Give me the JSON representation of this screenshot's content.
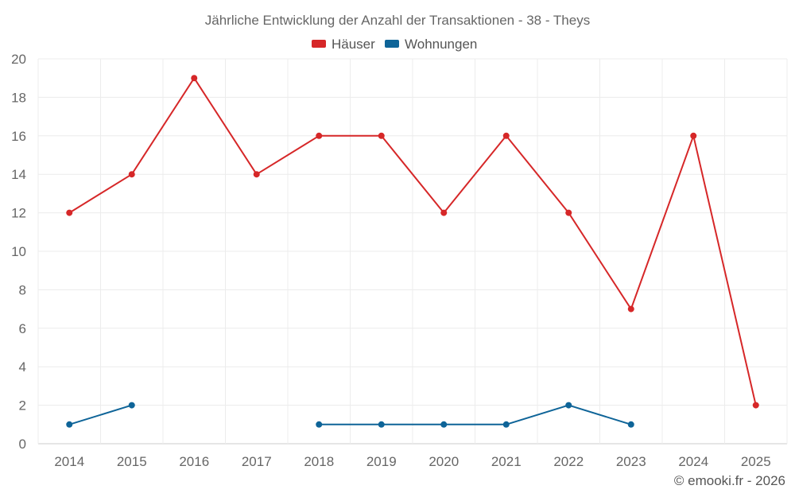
{
  "chart_data": {
    "type": "line",
    "title": "Jährliche Entwicklung der Anzahl der Transaktionen - 38 - Theys",
    "categories": [
      "2014",
      "2015",
      "2016",
      "2017",
      "2018",
      "2019",
      "2020",
      "2021",
      "2022",
      "2023",
      "2024",
      "2025"
    ],
    "ylim": [
      0,
      20
    ],
    "yticks": [
      0,
      2,
      4,
      6,
      8,
      10,
      12,
      14,
      16,
      18,
      20
    ],
    "grid": true,
    "legend_position": "top-center",
    "series": [
      {
        "name": "Häuser",
        "color": "#d62728",
        "values": [
          12,
          14,
          19,
          14,
          16,
          16,
          12,
          16,
          12,
          7,
          16,
          2
        ]
      },
      {
        "name": "Wohnungen",
        "color": "#0e6498",
        "values": [
          1,
          2,
          null,
          null,
          1,
          1,
          1,
          1,
          2,
          1,
          null,
          null
        ]
      }
    ],
    "credit": "© emooki.fr - 2026"
  }
}
